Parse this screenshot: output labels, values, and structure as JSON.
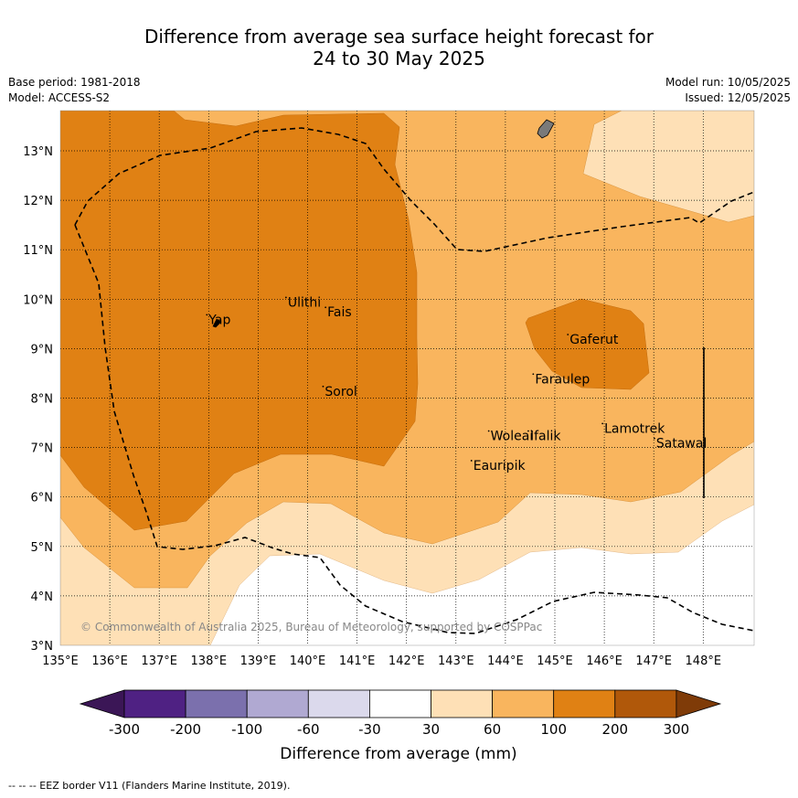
{
  "title_line1": "Difference from average sea surface height forecast for",
  "title_line2": "24 to 30 May 2025",
  "base_period": "Base period: 1981-2018",
  "model": "Model: ACCESS-S2",
  "model_run": "Model run: 10/05/2025",
  "issued": "Issued: 12/05/2025",
  "lon_ticks": [
    "135°E",
    "136°E",
    "137°E",
    "138°E",
    "139°E",
    "140°E",
    "141°E",
    "142°E",
    "143°E",
    "144°E",
    "145°E",
    "146°E",
    "147°E",
    "148°E"
  ],
  "lat_ticks": [
    "3°N",
    "4°N",
    "5°N",
    "6°N",
    "7°N",
    "8°N",
    "9°N",
    "10°N",
    "11°N",
    "12°N",
    "13°N"
  ],
  "places": [
    {
      "name": "Yap",
      "lon": 138.0,
      "lat": 9.5
    },
    {
      "name": "Ulithi",
      "lon": 139.6,
      "lat": 9.85
    },
    {
      "name": "Fais",
      "lon": 140.4,
      "lat": 9.65
    },
    {
      "name": "Sorol",
      "lon": 140.35,
      "lat": 8.05
    },
    {
      "name": "Gaferut",
      "lon": 145.3,
      "lat": 9.1
    },
    {
      "name": "Faraulep",
      "lon": 144.6,
      "lat": 8.3
    },
    {
      "name": "Woleai",
      "lon": 143.7,
      "lat": 7.15
    },
    {
      "name": "Ifalik",
      "lon": 144.5,
      "lat": 7.15
    },
    {
      "name": "Lamotrek",
      "lon": 146.0,
      "lat": 7.3
    },
    {
      "name": "Satawal",
      "lon": 147.05,
      "lat": 7.0
    },
    {
      "name": "Eauripik",
      "lon": 143.35,
      "lat": 6.55
    }
  ],
  "copyright": "© Commonwealth of Australia 2025, Bureau of Meteorology, supported by COSPPac",
  "colorbar": {
    "labels": [
      "-300",
      "-200",
      "-100",
      "-60",
      "-30",
      "30",
      "60",
      "100",
      "200",
      "300"
    ],
    "colors": [
      "#3b1656",
      "#4f2183",
      "#7b70ad",
      "#b0a9d2",
      "#dbd9ec",
      "#ffffff",
      "#fee0b6",
      "#f9b55e",
      "#e08114",
      "#b0580a",
      "#7f3b08"
    ],
    "title": "Difference from average (mm)"
  },
  "footnote": "--  --  -- EEZ border V11 (Flanders Marine Institute, 2019)."
}
